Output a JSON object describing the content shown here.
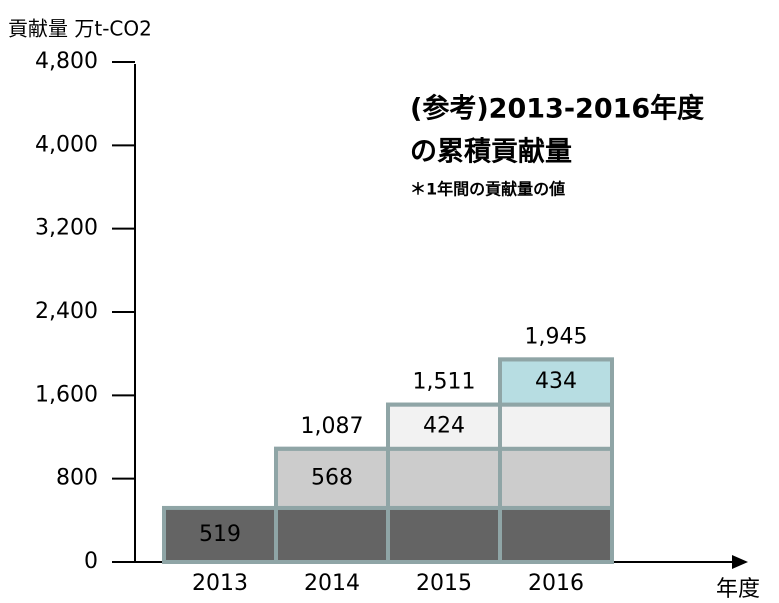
{
  "chart_data": {
    "type": "stacked_bar",
    "y_axis_label": "貢献量 万t-CO2",
    "x_axis_label": "年度",
    "annotations": [
      "(参考)2013-2016年度",
      "の累積貢献量",
      "＊1年間の貢献量の値"
    ],
    "categories": [
      "2013",
      "2014",
      "2015",
      "2016"
    ],
    "series": [
      {
        "color": "#646464",
        "values": [
          519,
          519,
          519,
          519
        ]
      },
      {
        "color": "#cccccc",
        "values": [
          null,
          568,
          568,
          568
        ]
      },
      {
        "color": "#f2f2f2",
        "values": [
          null,
          null,
          424,
          424
        ]
      },
      {
        "color": "#b7dde2",
        "values": [
          null,
          null,
          null,
          434
        ]
      }
    ],
    "totals": [
      null,
      1087,
      1511,
      1945
    ],
    "total_labels": [
      null,
      "1,087",
      "1,511",
      "1,945"
    ],
    "ylim": [
      0,
      4800
    ],
    "yticks": [
      0,
      800,
      {
        "value": 1600,
        "label": "1,600"
      },
      {
        "value": 2400,
        "label": "2,400"
      },
      {
        "value": 3200,
        "label": "3,200"
      },
      {
        "value": 4000,
        "label": "4,000"
      },
      {
        "value": 4800,
        "label": "4,800"
      }
    ]
  }
}
